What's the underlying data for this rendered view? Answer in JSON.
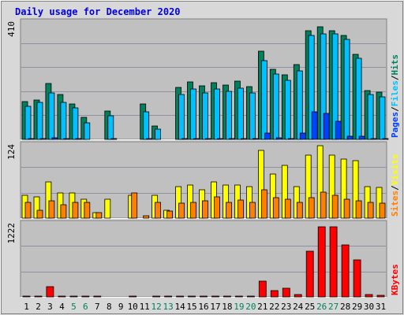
{
  "colors": {
    "frame": "#d8d8d8",
    "plot": "#c0c0c0",
    "gridline": "#9090a0",
    "title": "#0000e0",
    "hits": "#00805c",
    "files": "#00c0ff",
    "pages": "#0040ff",
    "visits": "#ffff00",
    "sites": "#ff8000",
    "kbytes": "#ff0000",
    "weekend": "#00805c",
    "weekday": "#000000"
  },
  "chart_data": {
    "type": "bar",
    "title": "Daily usage for December 2020",
    "days": [
      "1",
      "2",
      "3",
      "4",
      "5",
      "6",
      "7",
      "8",
      "9",
      "10",
      "11",
      "12",
      "13",
      "14",
      "15",
      "16",
      "17",
      "18",
      "19",
      "20",
      "21",
      "22",
      "23",
      "24",
      "25",
      "26",
      "27",
      "28",
      "29",
      "30",
      "31"
    ],
    "weekend_days": [
      5,
      6,
      12,
      13,
      19,
      20,
      26,
      27
    ],
    "panels": [
      {
        "axis_max_label": "410",
        "legend": [
          "Pages",
          "Files",
          "Hits"
        ],
        "ymax": 410,
        "series": [
          {
            "name": "Hits",
            "color_key": "hits",
            "values": [
              136,
              140,
              202,
              160,
              128,
              80,
              0,
              102,
              0,
              0,
              128,
              48,
              0,
              186,
              206,
              192,
              204,
              196,
              208,
              190,
              318,
              252,
              232,
              268,
              390,
              404,
              390,
              374,
              304,
              174,
              170
            ]
          },
          {
            "name": "Files",
            "color_key": "files",
            "values": [
              120,
              132,
              168,
              134,
              114,
              60,
              0,
              86,
              0,
              0,
              98,
              38,
              0,
              162,
              182,
              168,
              182,
              172,
              184,
              168,
              284,
              236,
              212,
              246,
              374,
              380,
              380,
              360,
              292,
              160,
              154
            ]
          },
          {
            "name": "Pages",
            "color_key": "pages",
            "values": [
              2,
              2,
              6,
              2,
              2,
              0,
              0,
              2,
              0,
              0,
              2,
              0,
              0,
              2,
              4,
              2,
              4,
              2,
              4,
              2,
              24,
              6,
              4,
              24,
              100,
              92,
              66,
              10,
              12,
              4,
              2
            ]
          }
        ]
      },
      {
        "axis_max_label": "124",
        "legend": [
          "Sites",
          "Visits"
        ],
        "ymax": 124,
        "series": [
          {
            "name": "Visits",
            "color_key": "visits",
            "values": [
              40,
              38,
              64,
              44,
              44,
              34,
              10,
              34,
              0,
              40,
              0,
              40,
              14,
              56,
              58,
              50,
              64,
              58,
              58,
              56,
              120,
              78,
              94,
              56,
              112,
              128,
              112,
              104,
              102,
              56,
              54
            ]
          },
          {
            "name": "Sites",
            "color_key": "sites",
            "values": [
              28,
              14,
              30,
              24,
              28,
              28,
              10,
              0,
              0,
              44,
              4,
              28,
              12,
              26,
              28,
              30,
              38,
              28,
              32,
              28,
              50,
              36,
              34,
              28,
              36,
              46,
              40,
              34,
              30,
              28,
              26
            ]
          }
        ]
      },
      {
        "axis_max_label": "1222",
        "legend": [
          "KBytes"
        ],
        "ymax": 1222,
        "series": [
          {
            "name": "KBytes",
            "color_key": "kbytes",
            "values": [
              18,
              18,
              180,
              18,
              18,
              18,
              18,
              0,
              0,
              18,
              0,
              18,
              18,
              18,
              18,
              18,
              18,
              18,
              18,
              18,
              280,
              110,
              150,
              40,
              790,
              1222,
              1222,
              910,
              650,
              40,
              30
            ]
          }
        ]
      }
    ]
  }
}
